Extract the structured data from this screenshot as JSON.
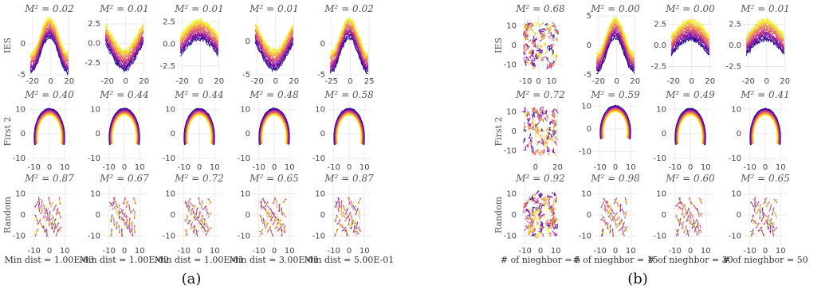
{
  "panel_labels": [
    "(a)",
    "(b)"
  ],
  "row_labels": [
    "IES",
    "First 2",
    "Random"
  ],
  "colormap": [
    "#0d0887",
    "#7e03a8",
    "#cc4778",
    "#f89540",
    "#f0f921"
  ],
  "grid_color": "#e6e6e6",
  "chart_data": [
    {
      "panel": "(a)",
      "type": "line",
      "cmap": "plasma",
      "grid": true,
      "columns": [
        {
          "xlabel": "Min dist = 1.00E-03",
          "plots": [
            {
              "row": "IES",
              "title": "M² = 0.02",
              "kind": "wave",
              "xlim": [
                -25,
                22
              ],
              "ylim": [
                -5,
                4.5
              ],
              "xticks": [
                -20,
                0,
                20
              ],
              "yticks": [
                -5,
                0
              ]
            },
            {
              "row": "First 2",
              "title": "M² = 0.40",
              "kind": "arch",
              "xlim": [
                -14,
                14
              ],
              "ylim": [
                -11,
                13
              ],
              "xticks": [
                -10,
                0,
                10
              ],
              "yticks": [
                -10,
                0,
                10
              ]
            },
            {
              "row": "Random",
              "title": "M² = 0.87",
              "kind": "random",
              "xlim": [
                -14,
                14
              ],
              "ylim": [
                -14,
                14
              ],
              "xticks": [
                -10,
                0,
                10
              ],
              "yticks": [
                -10,
                0,
                10
              ]
            }
          ]
        },
        {
          "xlabel": "Min dist = 1.00E-02",
          "plots": [
            {
              "row": "IES",
              "title": "M² = 0.01",
              "kind": "dip",
              "xlim": [
                -25,
                22
              ],
              "ylim": [
                -4,
                3.5
              ],
              "xticks": [
                -20,
                0,
                20
              ],
              "yticks": [
                -2.5,
                0.0,
                2.5
              ]
            },
            {
              "row": "First 2",
              "title": "M² = 0.44",
              "kind": "arch",
              "xlim": [
                -14,
                14
              ],
              "ylim": [
                -11,
                13
              ],
              "xticks": [
                -10,
                0,
                10
              ],
              "yticks": [
                -10,
                0,
                10
              ]
            },
            {
              "row": "Random",
              "title": "M² = 0.67",
              "kind": "random",
              "xlim": [
                -14,
                14
              ],
              "ylim": [
                -14,
                14
              ],
              "xticks": [
                -10,
                0,
                10
              ],
              "yticks": [
                -10,
                0,
                10
              ]
            }
          ]
        },
        {
          "xlabel": "Min dist = 1.00E-01",
          "plots": [
            {
              "row": "IES",
              "title": "M² = 0.01",
              "kind": "hump",
              "xlim": [
                -25,
                22
              ],
              "ylim": [
                -3.5,
                3.2
              ],
              "xticks": [
                -20,
                0,
                20
              ],
              "yticks": [
                -2.5,
                0.0,
                2.5
              ]
            },
            {
              "row": "First 2",
              "title": "M² = 0.44",
              "kind": "arch",
              "xlim": [
                -14,
                14
              ],
              "ylim": [
                -11,
                13
              ],
              "xticks": [
                -10,
                0,
                10
              ],
              "yticks": [
                -10,
                0,
                10
              ]
            },
            {
              "row": "Random",
              "title": "M² = 0.72",
              "kind": "random",
              "xlim": [
                -14,
                14
              ],
              "ylim": [
                -14,
                14
              ],
              "xticks": [
                -10,
                0,
                10
              ],
              "yticks": [
                -10,
                0,
                10
              ]
            }
          ]
        },
        {
          "xlabel": "Min dist = 3.00E-01",
          "plots": [
            {
              "row": "IES",
              "title": "M² = 0.01",
              "kind": "dip",
              "xlim": [
                -25,
                22
              ],
              "ylim": [
                -5,
                3.8
              ],
              "xticks": [
                -20,
                0,
                20
              ],
              "yticks": [
                -5,
                0
              ]
            },
            {
              "row": "First 2",
              "title": "M² = 0.48",
              "kind": "arch",
              "xlim": [
                -14,
                14
              ],
              "ylim": [
                -11,
                13
              ],
              "xticks": [
                -10,
                0,
                10
              ],
              "yticks": [
                -10,
                0,
                10
              ]
            },
            {
              "row": "Random",
              "title": "M² = 0.65",
              "kind": "random",
              "xlim": [
                -14,
                14
              ],
              "ylim": [
                -14,
                14
              ],
              "xticks": [
                -10,
                0,
                10
              ],
              "yticks": [
                -10,
                0,
                10
              ]
            }
          ]
        },
        {
          "xlabel": "Min dist = 5.00E-01",
          "plots": [
            {
              "row": "IES",
              "title": "M² = 0.02",
              "kind": "wave",
              "xlim": [
                -30,
                27
              ],
              "ylim": [
                -5,
                4.5
              ],
              "xticks": [
                -25,
                0,
                25
              ],
              "yticks": [
                -5,
                0
              ]
            },
            {
              "row": "First 2",
              "title": "M² = 0.58",
              "kind": "arch",
              "xlim": [
                -14,
                14
              ],
              "ylim": [
                -11,
                13
              ],
              "xticks": [
                -10,
                0,
                10
              ],
              "yticks": [
                -10,
                0,
                10
              ]
            },
            {
              "row": "Random",
              "title": "M² = 0.87",
              "kind": "random",
              "xlim": [
                -14,
                14
              ],
              "ylim": [
                -14,
                14
              ],
              "xticks": [
                -10,
                0,
                10
              ],
              "yticks": [
                -10,
                0,
                10
              ]
            }
          ]
        }
      ]
    },
    {
      "panel": "(b)",
      "type": "line",
      "cmap": "plasma",
      "grid": true,
      "columns": [
        {
          "xlabel": "# of nieghbor = 5",
          "plots": [
            {
              "row": "IES",
              "title": "M² = 0.68",
              "kind": "scatter",
              "xlim": [
                -15,
                18
              ],
              "ylim": [
                -15,
                15
              ],
              "xticks": [
                -10,
                0,
                10
              ],
              "yticks": [
                -10,
                0,
                10
              ]
            },
            {
              "row": "First 2",
              "title": "M² = 0.72",
              "kind": "scatter",
              "xlim": [
                -15,
                24
              ],
              "ylim": [
                -15,
                15
              ],
              "xticks": [
                0,
                20
              ],
              "yticks": [
                -10,
                0,
                10
              ]
            },
            {
              "row": "Random",
              "title": "M² = 0.92",
              "kind": "scatter",
              "xlim": [
                -14,
                14
              ],
              "ylim": [
                -14,
                14
              ],
              "xticks": [
                -10,
                0,
                10
              ],
              "yticks": [
                -10,
                0,
                10
              ]
            }
          ]
        },
        {
          "xlabel": "# of nieghbor = 15",
          "plots": [
            {
              "row": "IES",
              "title": "M² = 0.00",
              "kind": "wave",
              "xlim": [
                -25,
                22
              ],
              "ylim": [
                -5,
                5
              ],
              "xticks": [
                -20,
                0,
                20
              ],
              "yticks": [
                -5,
                0,
                5
              ]
            },
            {
              "row": "First 2",
              "title": "M² = 0.59",
              "kind": "arch",
              "xlim": [
                -14,
                14
              ],
              "ylim": [
                -14,
                12
              ],
              "xticks": [
                -10,
                0,
                10
              ],
              "yticks": [
                -10,
                0,
                10
              ]
            },
            {
              "row": "Random",
              "title": "M² = 0.98",
              "kind": "random",
              "xlim": [
                -14,
                14
              ],
              "ylim": [
                -14,
                14
              ],
              "xticks": [
                -10,
                0,
                10
              ],
              "yticks": [
                -10,
                0,
                10
              ]
            }
          ]
        },
        {
          "xlabel": "# of nieghbor = 30",
          "plots": [
            {
              "row": "IES",
              "title": "M² = 0.00",
              "kind": "hump",
              "xlim": [
                -25,
                22
              ],
              "ylim": [
                -3.5,
                3.5
              ],
              "xticks": [
                -20,
                0,
                20
              ],
              "yticks": [
                -2.5,
                0.0,
                2.5
              ]
            },
            {
              "row": "First 2",
              "title": "M² = 0.49",
              "kind": "arch",
              "xlim": [
                -14,
                14
              ],
              "ylim": [
                -11,
                13
              ],
              "xticks": [
                -10,
                0,
                10
              ],
              "yticks": [
                -10,
                0,
                10
              ]
            },
            {
              "row": "Random",
              "title": "M² = 0.60",
              "kind": "random",
              "xlim": [
                -14,
                14
              ],
              "ylim": [
                -14,
                14
              ],
              "xticks": [
                -10,
                0,
                10
              ],
              "yticks": [
                -10,
                0,
                10
              ]
            }
          ]
        },
        {
          "xlabel": "# of nieghbor = 50",
          "plots": [
            {
              "row": "IES",
              "title": "M² = 0.01",
              "kind": "hump",
              "xlim": [
                -25,
                22
              ],
              "ylim": [
                -3.5,
                3.5
              ],
              "xticks": [
                -20,
                0,
                20
              ],
              "yticks": [
                -2.5,
                0.0,
                2.5
              ]
            },
            {
              "row": "First 2",
              "title": "M² = 0.41",
              "kind": "arch",
              "xlim": [
                -14,
                14
              ],
              "ylim": [
                -11,
                13
              ],
              "xticks": [
                -10,
                0,
                10
              ],
              "yticks": [
                -10,
                0,
                10
              ]
            },
            {
              "row": "Random",
              "title": "M² = 0.65",
              "kind": "random",
              "xlim": [
                -14,
                14
              ],
              "ylim": [
                -14,
                14
              ],
              "xticks": [
                -10,
                0,
                10
              ],
              "yticks": [
                -10,
                0,
                10
              ]
            }
          ]
        }
      ]
    }
  ]
}
